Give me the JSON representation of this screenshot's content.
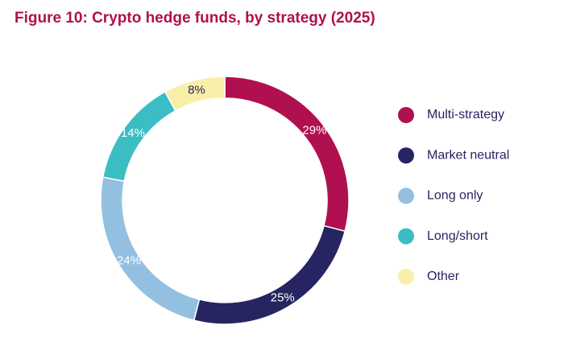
{
  "chart_data": {
    "type": "donut",
    "title": "Figure 10: Crypto hedge funds, by strategy (2025)",
    "categories": [
      "Multi-strategy",
      "Market neutral",
      "Long only",
      "Long/short",
      "Other"
    ],
    "values": [
      29,
      25,
      24,
      14,
      8
    ],
    "value_labels": [
      "29%",
      "25%",
      "24%",
      "14%",
      "8%"
    ],
    "colors": [
      "#b0104f",
      "#262562",
      "#93c0e0",
      "#3bbdc4",
      "#f8f0a8"
    ],
    "legend": "right"
  }
}
